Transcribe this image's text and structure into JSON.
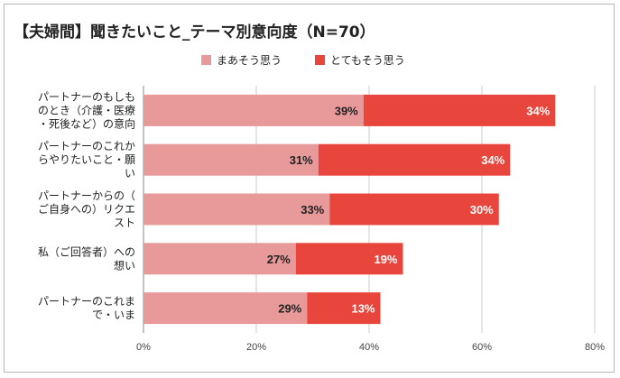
{
  "chart_data": {
    "type": "bar",
    "orientation": "horizontal",
    "stacked": true,
    "title": "【夫婦間】聞きたいこと_テーマ別意向度（N=70）",
    "categories": [
      [
        "パートナーのもしも",
        "のとき（介護・医療",
        "・死後など）の意向"
      ],
      [
        "パートナーのこれか",
        "らやりたいこと・願",
        "い"
      ],
      [
        "パートナーからの（",
        "ご自身への）リクエ",
        "スト"
      ],
      [
        "私（ご回答者）への",
        "想い"
      ],
      [
        "パートナーのこれま",
        "で・いま"
      ]
    ],
    "series": [
      {
        "name": "まあそう思う",
        "values": [
          39,
          31,
          33,
          27,
          29
        ],
        "labels": [
          "39%",
          "31%",
          "33%",
          "27%",
          "29%"
        ],
        "color": "#e8999a",
        "label_color": "#222222"
      },
      {
        "name": "とてもそう思う",
        "values": [
          34,
          34,
          30,
          19,
          13
        ],
        "labels": [
          "34%",
          "34%",
          "30%",
          "19%",
          "13%"
        ],
        "color": "#e8453c",
        "label_color": "#ffffff"
      }
    ],
    "xlim": [
      0,
      80
    ],
    "xticks": [
      0,
      20,
      40,
      60,
      80
    ],
    "xtick_labels": [
      "0%",
      "20%",
      "40%",
      "60%",
      "80%"
    ],
    "grid": true,
    "legend_position": "top-center",
    "xlabel": "",
    "ylabel": ""
  }
}
